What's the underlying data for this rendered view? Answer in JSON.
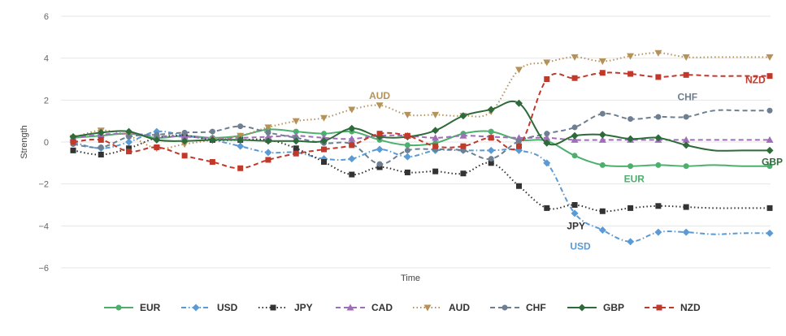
{
  "chart_data": {
    "type": "line",
    "xlabel": "Time",
    "ylabel": "Strength",
    "ylim": [
      -6,
      6
    ],
    "yticks": [
      "6",
      "4",
      "2",
      "0",
      "−2",
      "−4",
      "−6"
    ],
    "grid": true,
    "legend_position": "bottom",
    "series": [
      {
        "name": "EUR",
        "color": "#4caf6e",
        "dash": "solid",
        "marker": "circle",
        "label": "EUR",
        "label_show": true,
        "values": [
          0.2,
          0.3,
          0.4,
          0.2,
          0.3,
          0.2,
          0.3,
          0.6,
          0.5,
          0.4,
          0.5,
          0.1,
          -0.15,
          -0.05,
          0.4,
          0.5,
          0.1,
          0.05,
          -0.65,
          -1.1,
          -1.15,
          -1.1,
          -1.15,
          -1.1,
          -1.15,
          -1.15
        ]
      },
      {
        "name": "USD",
        "color": "#5b9bd5",
        "dash": "dashdot",
        "marker": "diamond",
        "label": "USD",
        "label_show": true,
        "values": [
          0.0,
          -0.3,
          0.0,
          0.5,
          0.3,
          0.1,
          -0.2,
          -0.5,
          -0.5,
          -0.8,
          -0.8,
          -0.35,
          -0.7,
          -0.4,
          -0.4,
          -0.4,
          -0.4,
          -1.0,
          -3.4,
          -4.2,
          -4.75,
          -4.3,
          -4.3,
          -4.4,
          -4.35,
          -4.35
        ]
      },
      {
        "name": "JPY",
        "color": "#333333",
        "dash": "dotted",
        "marker": "square",
        "label": "JPY",
        "label_show": true,
        "values": [
          -0.4,
          -0.6,
          -0.3,
          0.2,
          0.3,
          0.1,
          0.1,
          0.1,
          -0.3,
          -0.95,
          -1.55,
          -1.2,
          -1.45,
          -1.4,
          -1.5,
          -1.0,
          -2.1,
          -3.15,
          -3.0,
          -3.3,
          -3.15,
          -3.05,
          -3.1,
          -3.15,
          -3.15,
          -3.15
        ]
      },
      {
        "name": "CAD",
        "color": "#a06db8",
        "dash": "dashed",
        "marker": "triangle",
        "label": "CAD",
        "label_show": false,
        "values": [
          0.2,
          0.35,
          0.4,
          0.3,
          0.25,
          0.2,
          0.2,
          0.25,
          0.3,
          0.2,
          0.15,
          0.3,
          0.3,
          0.2,
          0.3,
          0.25,
          0.2,
          0.2,
          0.1,
          0.1,
          0.1,
          0.1,
          0.1,
          0.1,
          0.1,
          0.1
        ]
      },
      {
        "name": "AUD",
        "color": "#b5925a",
        "dash": "dotted",
        "marker": "triangle-down",
        "label": "AUD",
        "label_show": true,
        "values": [
          0.2,
          0.55,
          0.3,
          -0.3,
          -0.1,
          0.1,
          0.3,
          0.7,
          1.0,
          1.15,
          1.55,
          1.75,
          1.3,
          1.3,
          1.25,
          1.45,
          3.45,
          3.8,
          4.05,
          3.85,
          4.1,
          4.25,
          4.05,
          4.05,
          4.05,
          4.05
        ]
      },
      {
        "name": "CHF",
        "color": "#6e7f91",
        "dash": "dashed",
        "marker": "circle",
        "label": "CHF",
        "label_show": true,
        "values": [
          -0.1,
          -0.25,
          0.25,
          0.35,
          0.45,
          0.5,
          0.75,
          0.45,
          0.2,
          -0.05,
          -0.1,
          -1.05,
          -0.4,
          -0.35,
          -0.4,
          -0.8,
          0.05,
          0.4,
          0.7,
          1.35,
          1.1,
          1.2,
          1.2,
          1.5,
          1.5,
          1.5
        ]
      },
      {
        "name": "GBP",
        "color": "#2e6b3a",
        "dash": "solid",
        "marker": "diamond",
        "label": "GBP",
        "label_show": true,
        "values": [
          0.25,
          0.45,
          0.5,
          0.1,
          0.05,
          0.1,
          0.1,
          0.05,
          0.05,
          0.05,
          0.65,
          0.25,
          0.25,
          0.55,
          1.25,
          1.55,
          1.85,
          -0.05,
          0.3,
          0.35,
          0.15,
          0.2,
          -0.15,
          -0.4,
          -0.4,
          -0.4
        ]
      },
      {
        "name": "NZD",
        "color": "#c0392b",
        "dash": "dashed",
        "marker": "square",
        "label": "NZD",
        "label_show": true,
        "values": [
          0.0,
          0.1,
          -0.45,
          -0.25,
          -0.65,
          -0.95,
          -1.25,
          -0.85,
          -0.55,
          -0.35,
          -0.15,
          0.4,
          0.3,
          -0.2,
          -0.2,
          0.2,
          -0.2,
          3.0,
          3.05,
          3.3,
          3.25,
          3.1,
          3.2,
          3.15,
          3.15,
          3.15
        ]
      }
    ]
  }
}
